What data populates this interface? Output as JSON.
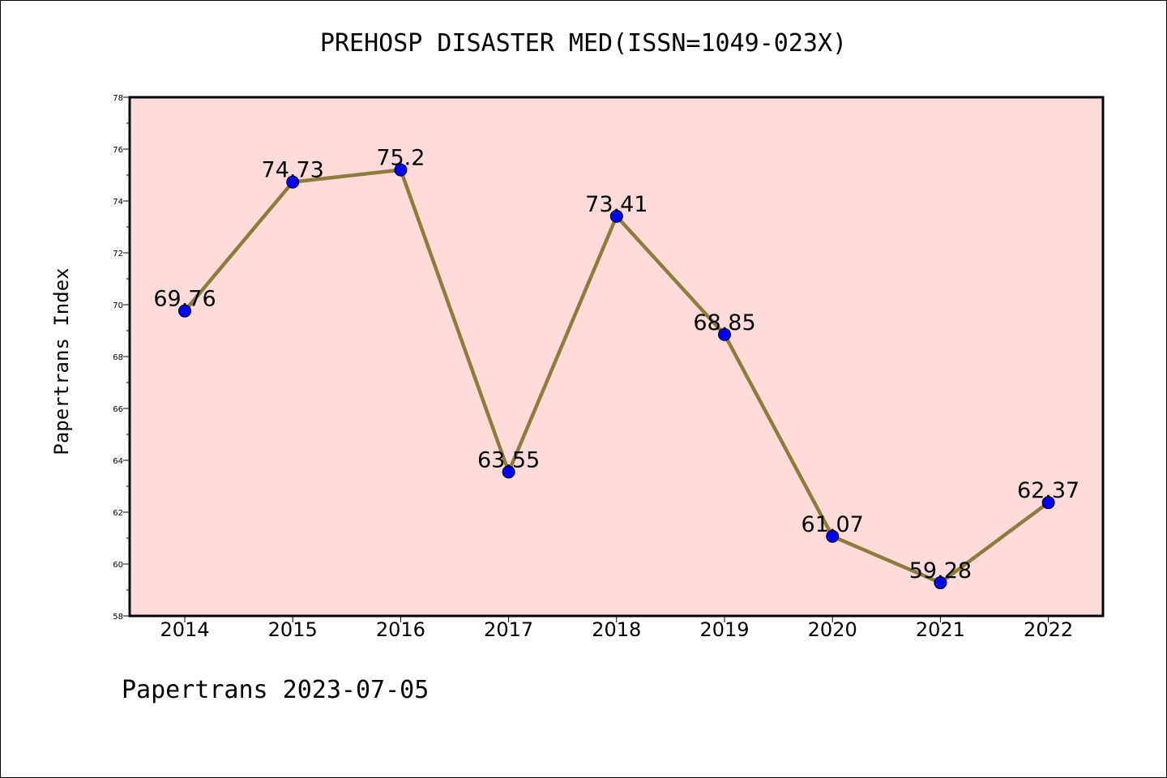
{
  "chart_data": {
    "type": "line",
    "title": "PREHOSP DISASTER MED(ISSN=1049-023X)",
    "ylabel": "Papertrans Index",
    "xlabel": "",
    "categories": [
      "2014",
      "2015",
      "2016",
      "2017",
      "2018",
      "2019",
      "2020",
      "2021",
      "2022"
    ],
    "series": [
      {
        "values": [
          69.76,
          74.73,
          75.2,
          63.55,
          73.41,
          68.85,
          61.07,
          59.28,
          62.37
        ]
      }
    ],
    "data_labels": [
      "69.76",
      "74.73",
      "75.2",
      "63.55",
      "73.41",
      "68.85",
      "61.07",
      "59.28",
      "62.37"
    ],
    "ylim": [
      58,
      78
    ],
    "yticks": [
      "58",
      "60",
      "62",
      "64",
      "66",
      "68",
      "70",
      "72",
      "74",
      "76",
      "78"
    ],
    "grid": false,
    "colors": {
      "plot_background": "#FFDCDA",
      "line": "#8E7D3A",
      "marker": "#0000FF"
    },
    "footer": "Papertrans 2023-07-05"
  }
}
